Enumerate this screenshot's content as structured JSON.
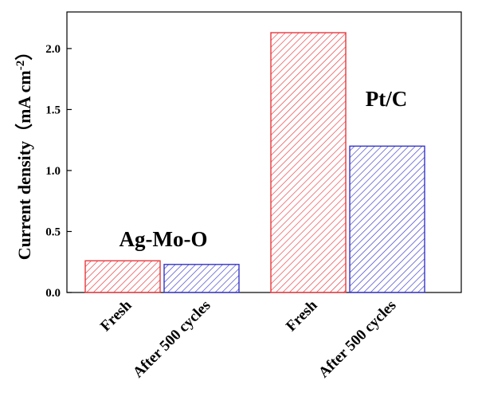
{
  "chart_data": {
    "type": "bar",
    "ylabel": "Current density",
    "ylabel_unit": "mA cm",
    "ylabel_superscript": "-2",
    "ylim": [
      0,
      2.3
    ],
    "yticks": [
      "0.0",
      "0.5",
      "1.0",
      "1.5",
      "2.0"
    ],
    "groups": [
      {
        "name": "Ag-Mo-O",
        "bars": [
          {
            "label": "Fresh",
            "value": 0.26,
            "color": "#e8373c"
          },
          {
            "label": "After 500 cycles",
            "value": 0.23,
            "color": "#3535c8"
          }
        ]
      },
      {
        "name": "Pt/C",
        "bars": [
          {
            "label": "Fresh",
            "value": 2.13,
            "color": "#e8373c"
          },
          {
            "label": "After 500 cycles",
            "value": 1.2,
            "color": "#3535c8"
          }
        ]
      }
    ],
    "legend": "none",
    "grid": false
  }
}
